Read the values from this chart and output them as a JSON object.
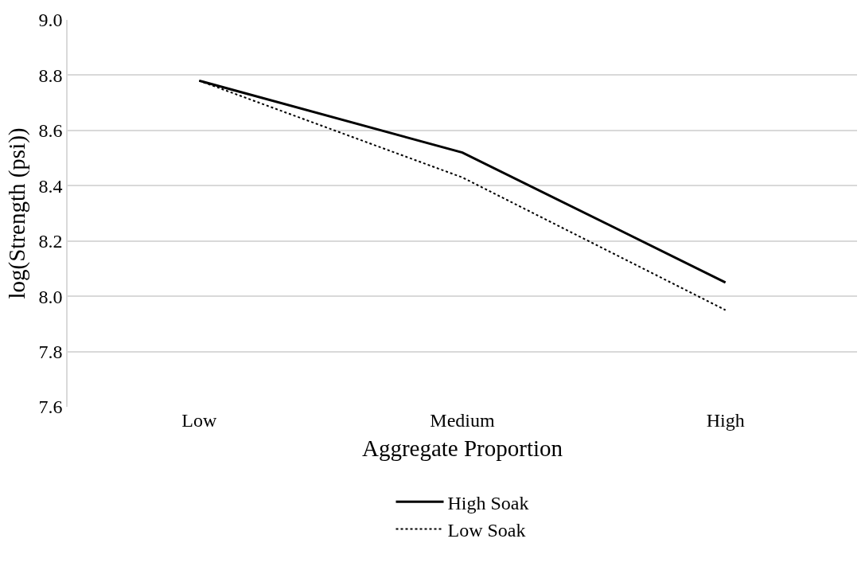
{
  "chart_data": {
    "type": "line",
    "xlabel": "Aggregate Proportion",
    "ylabel": "log(Strength (psi))",
    "categories": [
      "Low",
      "Medium",
      "High"
    ],
    "series": [
      {
        "name": "High Soak",
        "color": "#000000",
        "line_style": "solid",
        "values": [
          8.78,
          8.52,
          8.05
        ]
      },
      {
        "name": "Low Soak",
        "color": "#000000",
        "line_style": "dotted",
        "values": [
          8.78,
          8.43,
          7.95
        ]
      }
    ],
    "ylim": [
      7.6,
      9.0
    ],
    "yticks": [
      {
        "value": 7.6,
        "label": "7.6"
      },
      {
        "value": 7.8,
        "label": "7.8"
      },
      {
        "value": 8.0,
        "label": "8.0"
      },
      {
        "value": 8.2,
        "label": "8.2"
      },
      {
        "value": 8.4,
        "label": "8.4"
      },
      {
        "value": 8.6,
        "label": "8.6"
      },
      {
        "value": 8.8,
        "label": "8.8"
      },
      {
        "value": 9.0,
        "label": "9.0"
      }
    ],
    "grid": "y",
    "legend": "bottom",
    "marker": "none"
  }
}
